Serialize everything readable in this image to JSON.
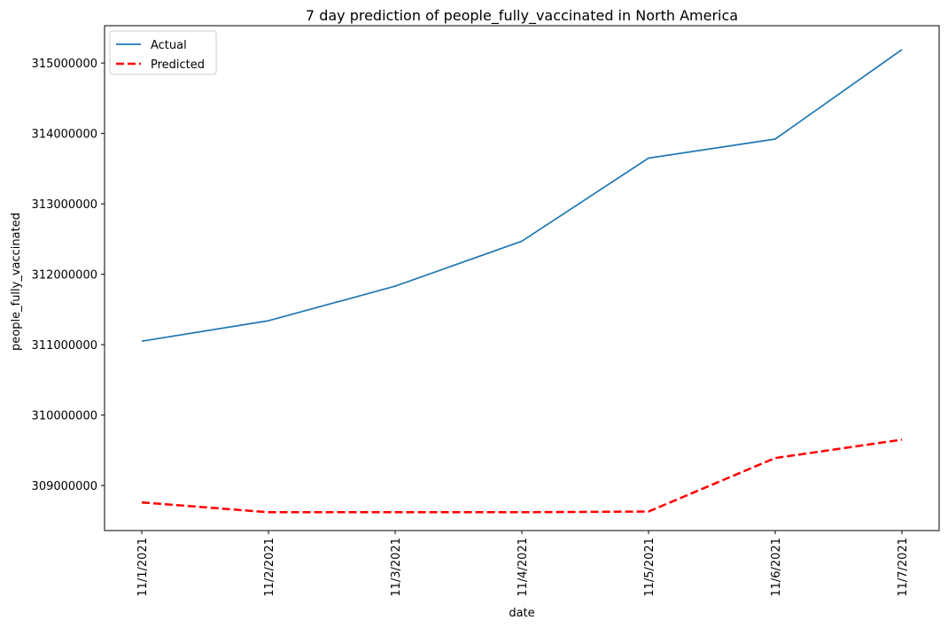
{
  "chart_data": {
    "type": "line",
    "title": "7 day prediction of people_fully_vaccinated in North America",
    "xlabel": "date",
    "ylabel": "people_fully_vaccinated",
    "categories": [
      "11/1/2021",
      "11/2/2021",
      "11/3/2021",
      "11/4/2021",
      "11/5/2021",
      "11/6/2021",
      "11/7/2021"
    ],
    "y_ticks": [
      309000000,
      310000000,
      311000000,
      312000000,
      313000000,
      314000000,
      315000000
    ],
    "ylim": [
      308360000,
      315530000
    ],
    "grid": false,
    "legend_position": "top-left",
    "series": [
      {
        "name": "Actual",
        "color": "#1f77b4",
        "style": "solid",
        "values": [
          311050000,
          311340000,
          311830000,
          312470000,
          313650000,
          313920000,
          315190000
        ]
      },
      {
        "name": "Predicted",
        "color": "#ff0000",
        "style": "dashed",
        "values": [
          308760000,
          308620000,
          308620000,
          308620000,
          308630000,
          309390000,
          309650000
        ]
      }
    ]
  }
}
